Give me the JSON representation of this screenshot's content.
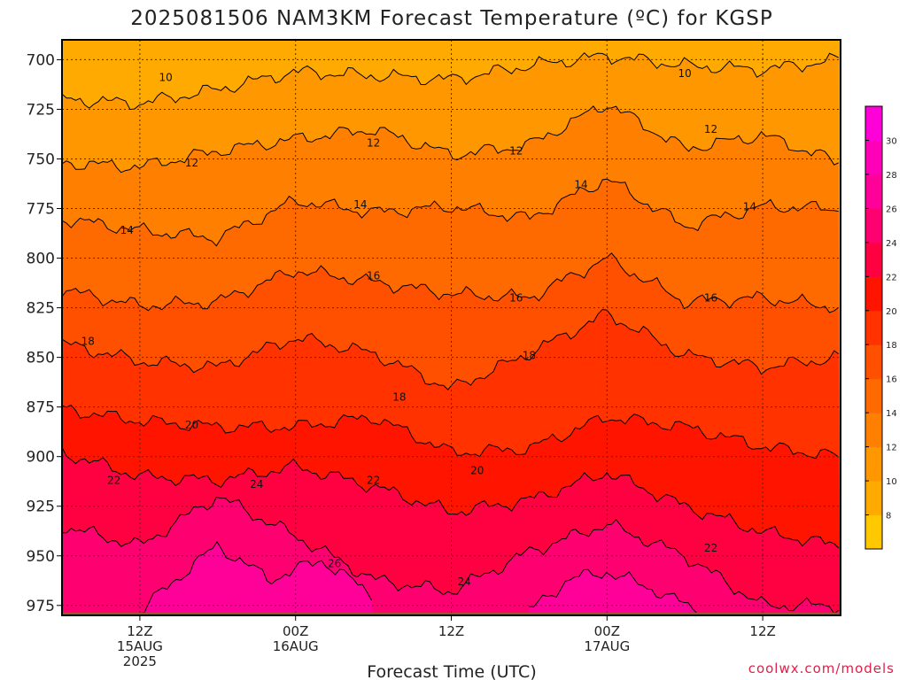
{
  "chart_data": {
    "type": "heatmap",
    "title": "2025081506 NAM3KM Forecast Temperature (ºC) for KGSP",
    "xlabel": "Forecast Time (UTC)",
    "ylabel": "",
    "y_axis": {
      "unit": "pressure (hPa)",
      "range": [
        690,
        980
      ],
      "inverted": true,
      "ticks": [
        "700",
        "725",
        "750",
        "775",
        "800",
        "825",
        "850",
        "875",
        "900",
        "925",
        "950",
        "975"
      ]
    },
    "x_axis": {
      "unit": "forecast hour",
      "range": [
        6,
        66
      ],
      "ticks": [
        {
          "hour": 12,
          "lines": [
            "12Z",
            "15AUG",
            "2025"
          ]
        },
        {
          "hour": 24,
          "lines": [
            "00Z",
            "16AUG"
          ]
        },
        {
          "hour": 36,
          "lines": [
            "12Z"
          ]
        },
        {
          "hour": 48,
          "lines": [
            "00Z",
            "17AUG"
          ]
        },
        {
          "hour": 60,
          "lines": [
            "12Z"
          ]
        }
      ]
    },
    "grid": "dotted horizontal and vertical",
    "colorbar": {
      "position": "right",
      "levels": [
        7,
        8,
        10,
        12,
        14,
        16,
        18,
        20,
        22,
        24,
        26,
        28,
        30,
        31
      ],
      "tick_labels": [
        "8",
        "10",
        "12",
        "14",
        "16",
        "18",
        "20",
        "22",
        "24",
        "26",
        "28",
        "30"
      ],
      "colors": [
        "#ffc800",
        "#ffaa00",
        "#ff9800",
        "#ff8000",
        "#ff6a00",
        "#ff5000",
        "#ff3200",
        "#ff1400",
        "#ff0040",
        "#ff0070",
        "#ff0098",
        "#ff00b8",
        "#ff00d8"
      ]
    },
    "contour_levels": [
      10,
      12,
      14,
      16,
      18,
      20,
      22,
      24,
      26
    ],
    "contour_isobars": [
      {
        "level": 10,
        "x": [
          6,
          12,
          18,
          24,
          30,
          36,
          42,
          48,
          54,
          60,
          66
        ],
        "y": [
          720,
          722,
          715,
          706,
          708,
          710,
          703,
          698,
          703,
          705,
          700
        ]
      },
      {
        "level": 12,
        "x": [
          6,
          12,
          18,
          24,
          30,
          36,
          42,
          48,
          54,
          60,
          66
        ],
        "y": [
          752,
          754,
          746,
          740,
          735,
          748,
          743,
          722,
          745,
          738,
          752
        ]
      },
      {
        "level": 14,
        "x": [
          6,
          12,
          18,
          24,
          30,
          36,
          42,
          48,
          54,
          60,
          66
        ],
        "y": [
          780,
          786,
          790,
          771,
          777,
          774,
          780,
          760,
          784,
          774,
          775
        ]
      },
      {
        "level": 16,
        "x": [
          6,
          12,
          18,
          24,
          30,
          36,
          42,
          48,
          54,
          60,
          66
        ],
        "y": [
          816,
          824,
          822,
          806,
          812,
          818,
          820,
          800,
          822,
          820,
          825
        ]
      },
      {
        "level": 18,
        "x": [
          6,
          12,
          18,
          24,
          30,
          36,
          42,
          48,
          54,
          60,
          66
        ],
        "y": [
          843,
          852,
          855,
          840,
          848,
          866,
          848,
          828,
          849,
          855,
          850
        ]
      },
      {
        "level": 20,
        "x": [
          6,
          12,
          18,
          24,
          30,
          36,
          42,
          48,
          54,
          60,
          66
        ],
        "y": [
          876,
          882,
          885,
          885,
          880,
          898,
          896,
          880,
          885,
          895,
          900
        ]
      },
      {
        "level": 22,
        "x": [
          6,
          12,
          18,
          24,
          30,
          36,
          42,
          48,
          54,
          60,
          66
        ],
        "y": [
          898,
          910,
          912,
          905,
          915,
          928,
          922,
          908,
          925,
          938,
          945
        ]
      },
      {
        "level": 24,
        "x": [
          6,
          12,
          18,
          24,
          30,
          36,
          42,
          48,
          54,
          60,
          66
        ],
        "y": [
          935,
          945,
          920,
          940,
          962,
          968,
          948,
          934,
          950,
          975,
          975
        ]
      },
      {
        "level": 26,
        "x": [
          12,
          16,
          18,
          22,
          26,
          30
        ],
        "y": [
          978,
          955,
          945,
          962,
          952,
          970
        ]
      },
      {
        "level": 26,
        "x": [
          42,
          45,
          48,
          52,
          55
        ],
        "y": [
          978,
          962,
          958,
          968,
          978
        ]
      }
    ],
    "contour_labels": [
      {
        "text": "10",
        "x": 14,
        "y": 709
      },
      {
        "text": "10",
        "x": 54,
        "y": 707
      },
      {
        "text": "12",
        "x": 16,
        "y": 752
      },
      {
        "text": "12",
        "x": 30,
        "y": 742
      },
      {
        "text": "12",
        "x": 41,
        "y": 746
      },
      {
        "text": "12",
        "x": 56,
        "y": 735
      },
      {
        "text": "14",
        "x": 11,
        "y": 786
      },
      {
        "text": "14",
        "x": 29,
        "y": 773
      },
      {
        "text": "14",
        "x": 46,
        "y": 763
      },
      {
        "text": "14",
        "x": 59,
        "y": 774
      },
      {
        "text": "16",
        "x": 30,
        "y": 809
      },
      {
        "text": "16",
        "x": 41,
        "y": 820
      },
      {
        "text": "16",
        "x": 56,
        "y": 820
      },
      {
        "text": "18",
        "x": 8,
        "y": 842
      },
      {
        "text": "18",
        "x": 32,
        "y": 870
      },
      {
        "text": "18",
        "x": 42,
        "y": 849
      },
      {
        "text": "20",
        "x": 16,
        "y": 884
      },
      {
        "text": "20",
        "x": 38,
        "y": 907
      },
      {
        "text": "22",
        "x": 10,
        "y": 912
      },
      {
        "text": "22",
        "x": 30,
        "y": 912
      },
      {
        "text": "22",
        "x": 56,
        "y": 946
      },
      {
        "text": "24",
        "x": 21,
        "y": 914
      },
      {
        "text": "24",
        "x": 37,
        "y": 963
      },
      {
        "text": "26",
        "x": 27,
        "y": 954
      }
    ],
    "ground_level_hpa": 975,
    "credit": "coolwx.com/models"
  }
}
